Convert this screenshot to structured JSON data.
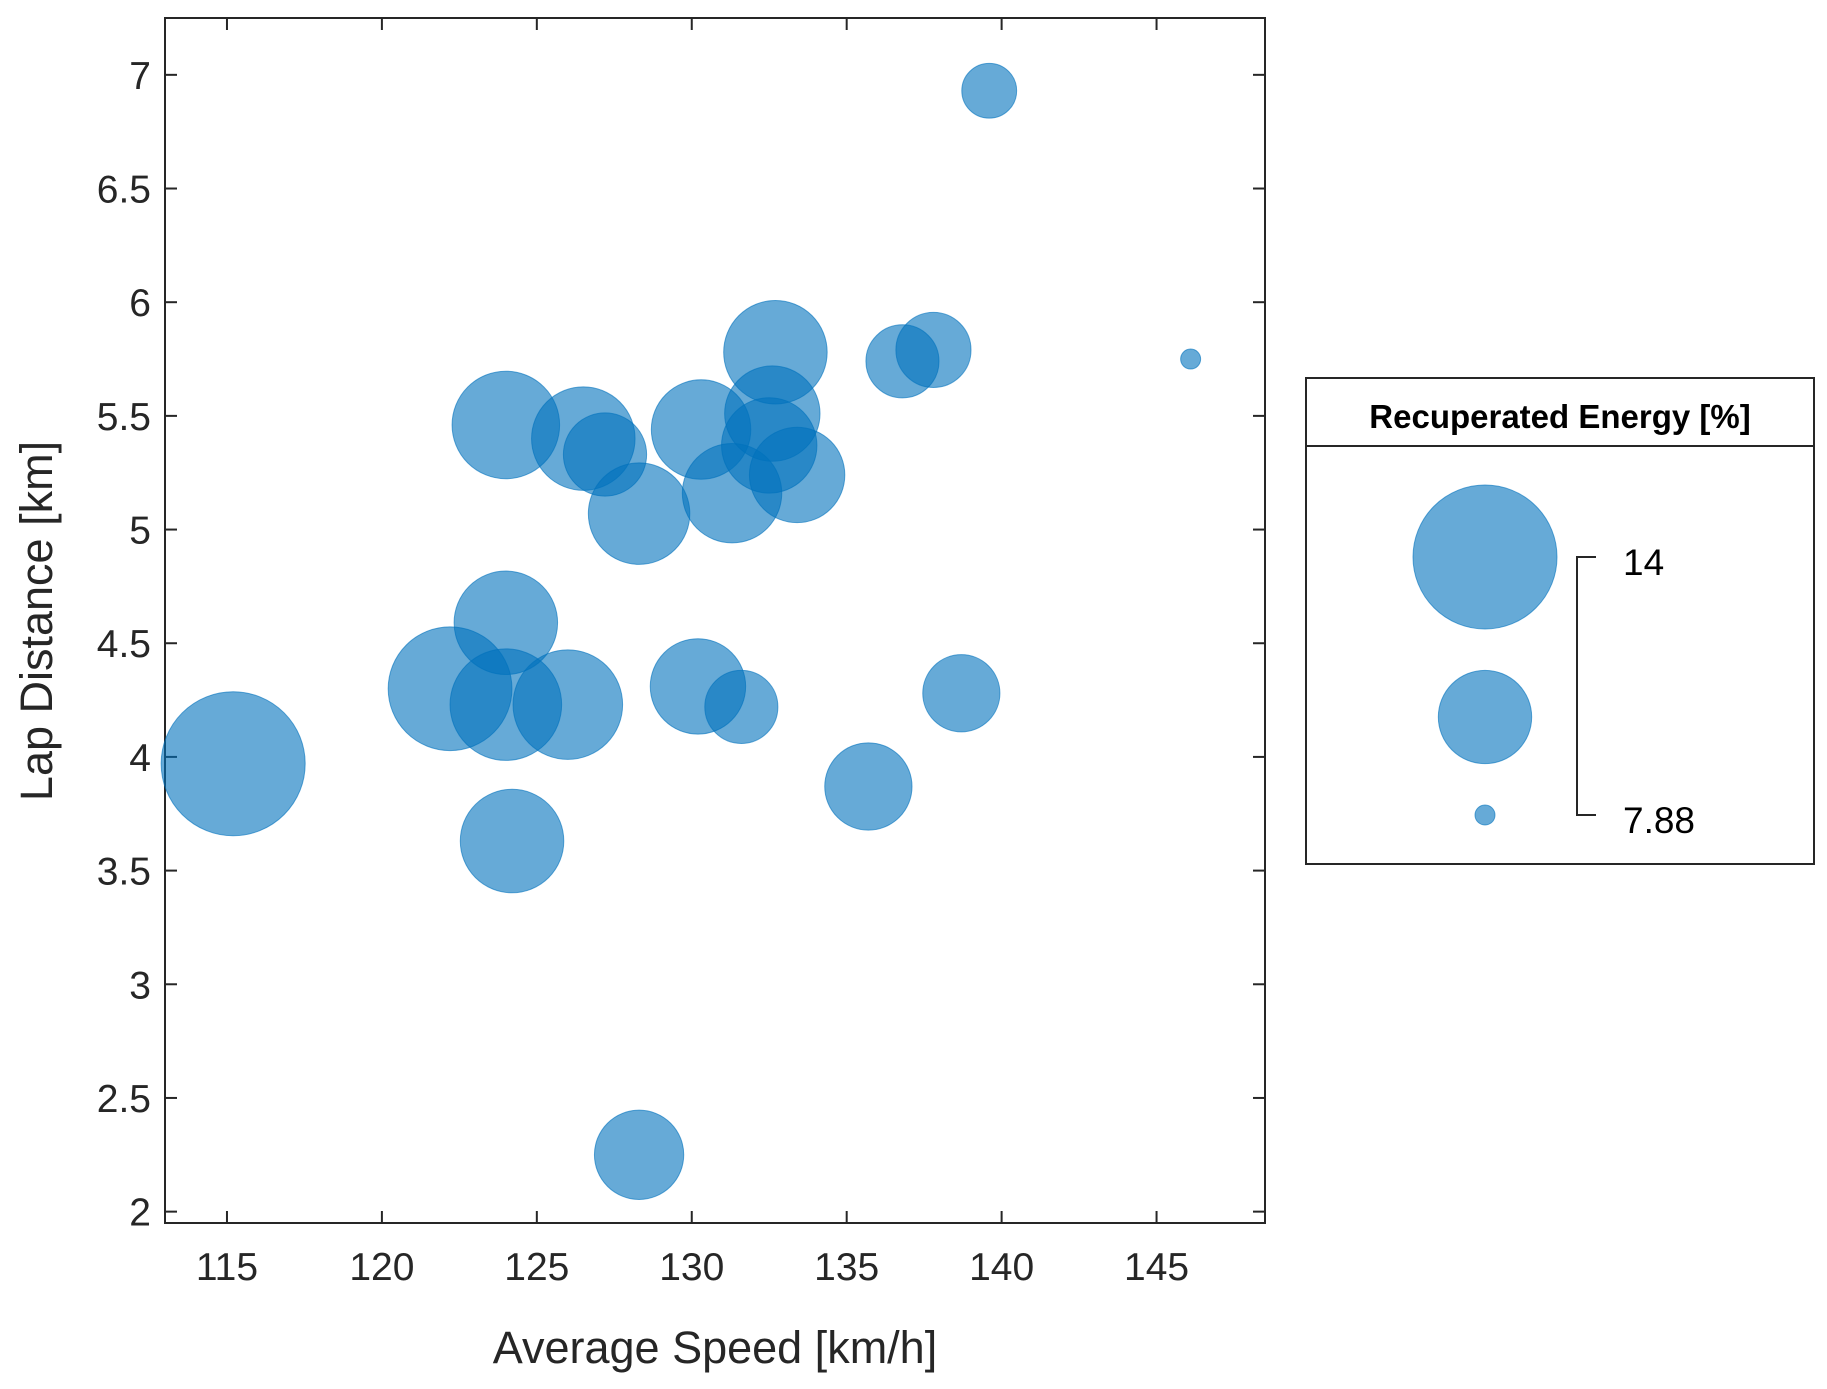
{
  "chart_data": {
    "type": "scatter",
    "subtype": "bubble",
    "xlabel": "Average Speed [km/h]",
    "ylabel": "Lap Distance [km]",
    "xlim": [
      113,
      148.5
    ],
    "ylim": [
      1.95,
      7.25
    ],
    "xticks": [
      115,
      120,
      125,
      130,
      135,
      140,
      145
    ],
    "xtick_labels": [
      "115",
      "120",
      "125",
      "130",
      "135",
      "140",
      "145"
    ],
    "yticks": [
      2,
      2.5,
      3,
      3.5,
      4,
      4.5,
      5,
      5.5,
      6,
      6.5,
      7
    ],
    "ytick_labels": [
      "2",
      "2.5",
      "3",
      "3.5",
      "4",
      "4.5",
      "5",
      "5.5",
      "6",
      "6.5",
      "7"
    ],
    "grid": false,
    "color": "#0072BD",
    "legend": {
      "title": "Recuperated Energy [%]",
      "placement": "right",
      "max_label": "14",
      "min_label": "7.88",
      "bubble_values": [
        14,
        11.5,
        7.88
      ]
    },
    "size_range": [
      7.88,
      14
    ],
    "points": [
      {
        "x": 115.2,
        "y": 3.97,
        "size": 14.0
      },
      {
        "x": 122.2,
        "y": 4.3,
        "size": 13.0
      },
      {
        "x": 124.0,
        "y": 4.59,
        "size": 12.0
      },
      {
        "x": 124.0,
        "y": 4.23,
        "size": 12.4
      },
      {
        "x": 126.0,
        "y": 4.23,
        "size": 12.3
      },
      {
        "x": 124.2,
        "y": 3.63,
        "size": 12.0
      },
      {
        "x": 124.0,
        "y": 5.46,
        "size": 12.2
      },
      {
        "x": 126.5,
        "y": 5.4,
        "size": 12.0
      },
      {
        "x": 127.2,
        "y": 5.33,
        "size": 11.0
      },
      {
        "x": 128.3,
        "y": 5.07,
        "size": 11.9
      },
      {
        "x": 130.3,
        "y": 5.44,
        "size": 11.8
      },
      {
        "x": 131.3,
        "y": 5.16,
        "size": 11.8
      },
      {
        "x": 132.5,
        "y": 5.37,
        "size": 11.6
      },
      {
        "x": 132.6,
        "y": 5.51,
        "size": 11.6
      },
      {
        "x": 133.4,
        "y": 5.24,
        "size": 11.6
      },
      {
        "x": 132.7,
        "y": 5.78,
        "size": 12.0
      },
      {
        "x": 136.8,
        "y": 5.74,
        "size": 10.5
      },
      {
        "x": 137.8,
        "y": 5.79,
        "size": 10.6
      },
      {
        "x": 139.6,
        "y": 6.93,
        "size": 9.6
      },
      {
        "x": 146.1,
        "y": 5.75,
        "size": 7.88
      },
      {
        "x": 130.2,
        "y": 4.31,
        "size": 11.6
      },
      {
        "x": 131.6,
        "y": 4.22,
        "size": 10.5
      },
      {
        "x": 138.7,
        "y": 4.28,
        "size": 10.7
      },
      {
        "x": 135.7,
        "y": 3.87,
        "size": 11.2
      },
      {
        "x": 128.3,
        "y": 2.25,
        "size": 11.3
      }
    ]
  }
}
